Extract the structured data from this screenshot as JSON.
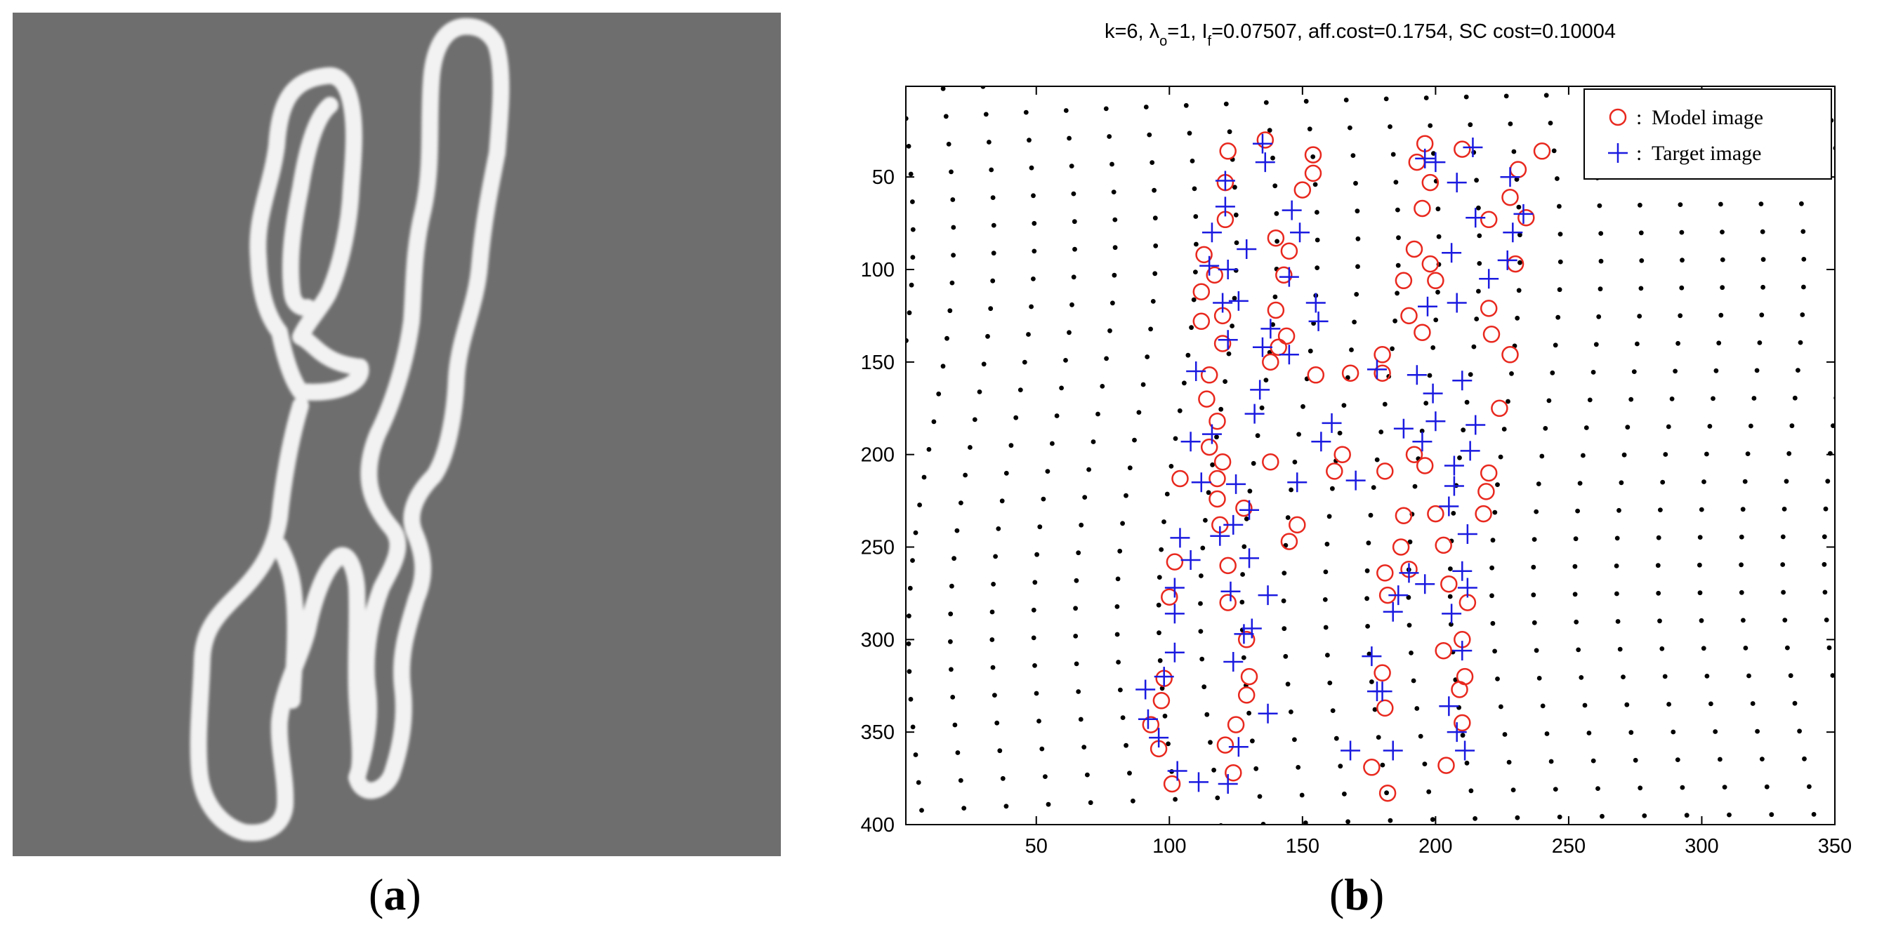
{
  "panels": [
    {
      "label_open": "(",
      "label_letter": "a",
      "label_close": ")"
    },
    {
      "label_open": "(",
      "label_letter": "b",
      "label_close": ")"
    }
  ],
  "colors": {
    "image_background": "#6e6e6e",
    "contour": "#f2f2f2",
    "model_marker": "#e8281e",
    "target_marker": "#1a1ae0",
    "grid_dot": "#000000"
  },
  "chart_data": {
    "type": "scatter",
    "title": "k=6, λo=1, If=0.07507, aff.cost=0.1754, SC cost=0.10004",
    "title_parts": {
      "a": "k=6, ",
      "lambda": "λ",
      "lambda_sub": "o",
      "b": "=1, I",
      "i_sub": "f",
      "c": "=0.07507, aff.cost=0.1754, SC cost=0.10004"
    },
    "xlabel": "",
    "ylabel": "",
    "xlim": [
      1,
      350
    ],
    "ylim": [
      400,
      1
    ],
    "y_reversed": true,
    "xticks": [
      50,
      100,
      150,
      200,
      250,
      300,
      350
    ],
    "yticks": [
      50,
      100,
      150,
      200,
      250,
      300,
      350,
      400
    ],
    "grid": false,
    "legend_position": "top-right",
    "legend": [
      {
        "marker": "circle",
        "sep": ":",
        "label": "Model image"
      },
      {
        "marker": "plus",
        "sep": ":",
        "label": "Target image"
      }
    ],
    "series": [
      {
        "name": "Model image",
        "marker": "circle",
        "points": [
          [
            122,
            36
          ],
          [
            136,
            30
          ],
          [
            154,
            38
          ],
          [
            154,
            48
          ],
          [
            150,
            57
          ],
          [
            121,
            53
          ],
          [
            121,
            73
          ],
          [
            113,
            92
          ],
          [
            145,
            90
          ],
          [
            143,
            103
          ],
          [
            140,
            83
          ],
          [
            117,
            103
          ],
          [
            112,
            112
          ],
          [
            140,
            122
          ],
          [
            120,
            125
          ],
          [
            112,
            128
          ],
          [
            144,
            136
          ],
          [
            141,
            142
          ],
          [
            120,
            140
          ],
          [
            138,
            150
          ],
          [
            155,
            157
          ],
          [
            115,
            157
          ],
          [
            114,
            170
          ],
          [
            118,
            182
          ],
          [
            115,
            196
          ],
          [
            120,
            204
          ],
          [
            118,
            213
          ],
          [
            118,
            224
          ],
          [
            104,
            213
          ],
          [
            138,
            204
          ],
          [
            119,
            238
          ],
          [
            148,
            238
          ],
          [
            145,
            247
          ],
          [
            128,
            229
          ],
          [
            122,
            260
          ],
          [
            102,
            258
          ],
          [
            100,
            277
          ],
          [
            122,
            280
          ],
          [
            129,
            300
          ],
          [
            130,
            320
          ],
          [
            129,
            330
          ],
          [
            125,
            346
          ],
          [
            124,
            372
          ],
          [
            121,
            357
          ],
          [
            101,
            378
          ],
          [
            96,
            359
          ],
          [
            93,
            346
          ],
          [
            97,
            333
          ],
          [
            98,
            321
          ],
          [
            196,
            32
          ],
          [
            210,
            35
          ],
          [
            193,
            42
          ],
          [
            240,
            36
          ],
          [
            231,
            46
          ],
          [
            198,
            53
          ],
          [
            195,
            67
          ],
          [
            228,
            61
          ],
          [
            234,
            72
          ],
          [
            220,
            73
          ],
          [
            192,
            89
          ],
          [
            230,
            97
          ],
          [
            198,
            97
          ],
          [
            200,
            106
          ],
          [
            188,
            106
          ],
          [
            190,
            125
          ],
          [
            195,
            134
          ],
          [
            220,
            121
          ],
          [
            221,
            135
          ],
          [
            228,
            146
          ],
          [
            180,
            146
          ],
          [
            180,
            156
          ],
          [
            168,
            156
          ],
          [
            224,
            175
          ],
          [
            192,
            200
          ],
          [
            196,
            206
          ],
          [
            181,
            209
          ],
          [
            162,
            209
          ],
          [
            165,
            200
          ],
          [
            220,
            210
          ],
          [
            219,
            220
          ],
          [
            218,
            232
          ],
          [
            188,
            233
          ],
          [
            200,
            232
          ],
          [
            187,
            250
          ],
          [
            203,
            249
          ],
          [
            190,
            262
          ],
          [
            181,
            264
          ],
          [
            182,
            276
          ],
          [
            210,
            300
          ],
          [
            211,
            320
          ],
          [
            203,
            306
          ],
          [
            205,
            270
          ],
          [
            212,
            280
          ],
          [
            210,
            345
          ],
          [
            209,
            327
          ],
          [
            204,
            368
          ],
          [
            182,
            383
          ],
          [
            180,
            318
          ],
          [
            176,
            369
          ],
          [
            181,
            337
          ]
        ]
      },
      {
        "name": "Target image",
        "marker": "plus",
        "points": [
          [
            135,
            32
          ],
          [
            136,
            42
          ],
          [
            121,
            52
          ],
          [
            214,
            34
          ],
          [
            196,
            40
          ],
          [
            208,
            53
          ],
          [
            200,
            42
          ],
          [
            228,
            50
          ],
          [
            116,
            80
          ],
          [
            121,
            66
          ],
          [
            129,
            89
          ],
          [
            146,
            68
          ],
          [
            145,
            104
          ],
          [
            149,
            80
          ],
          [
            233,
            70
          ],
          [
            229,
            80
          ],
          [
            215,
            72
          ],
          [
            227,
            95
          ],
          [
            115,
            98
          ],
          [
            122,
            100
          ],
          [
            126,
            117
          ],
          [
            120,
            118
          ],
          [
            155,
            118
          ],
          [
            156,
            128
          ],
          [
            122,
            138
          ],
          [
            138,
            132
          ],
          [
            135,
            142
          ],
          [
            134,
            165
          ],
          [
            145,
            146
          ],
          [
            132,
            178
          ],
          [
            110,
            155
          ],
          [
            161,
            183
          ],
          [
            220,
            105
          ],
          [
            206,
            91
          ],
          [
            197,
            120
          ],
          [
            208,
            118
          ],
          [
            193,
            157
          ],
          [
            199,
            167
          ],
          [
            210,
            160
          ],
          [
            215,
            184
          ],
          [
            178,
            154
          ],
          [
            200,
            182
          ],
          [
            195,
            193
          ],
          [
            188,
            186
          ],
          [
            207,
            206
          ],
          [
            213,
            198
          ],
          [
            207,
            217
          ],
          [
            205,
            228
          ],
          [
            116,
            189
          ],
          [
            108,
            193
          ],
          [
            112,
            215
          ],
          [
            125,
            216
          ],
          [
            130,
            230
          ],
          [
            124,
            238
          ],
          [
            119,
            244
          ],
          [
            148,
            215
          ],
          [
            170,
            214
          ],
          [
            157,
            193
          ],
          [
            104,
            245
          ],
          [
            108,
            257
          ],
          [
            102,
            272
          ],
          [
            102,
            286
          ],
          [
            137,
            276
          ],
          [
            123,
            274
          ],
          [
            130,
            256
          ],
          [
            212,
            243
          ],
          [
            190,
            264
          ],
          [
            196,
            270
          ],
          [
            186,
            276
          ],
          [
            184,
            285
          ],
          [
            206,
            286
          ],
          [
            210,
            263
          ],
          [
            212,
            272
          ],
          [
            210,
            306
          ],
          [
            211,
            360
          ],
          [
            208,
            350
          ],
          [
            176,
            309
          ],
          [
            178,
            328
          ],
          [
            168,
            360
          ],
          [
            184,
            360
          ],
          [
            180,
            328
          ],
          [
            122,
            378
          ],
          [
            111,
            377
          ],
          [
            126,
            358
          ],
          [
            124,
            312
          ],
          [
            131,
            294
          ],
          [
            128,
            297
          ],
          [
            137,
            340
          ],
          [
            102,
            307
          ],
          [
            98,
            320
          ],
          [
            96,
            353
          ],
          [
            92,
            343
          ],
          [
            91,
            327
          ],
          [
            103,
            371
          ],
          [
            205,
            336
          ]
        ]
      }
    ]
  }
}
